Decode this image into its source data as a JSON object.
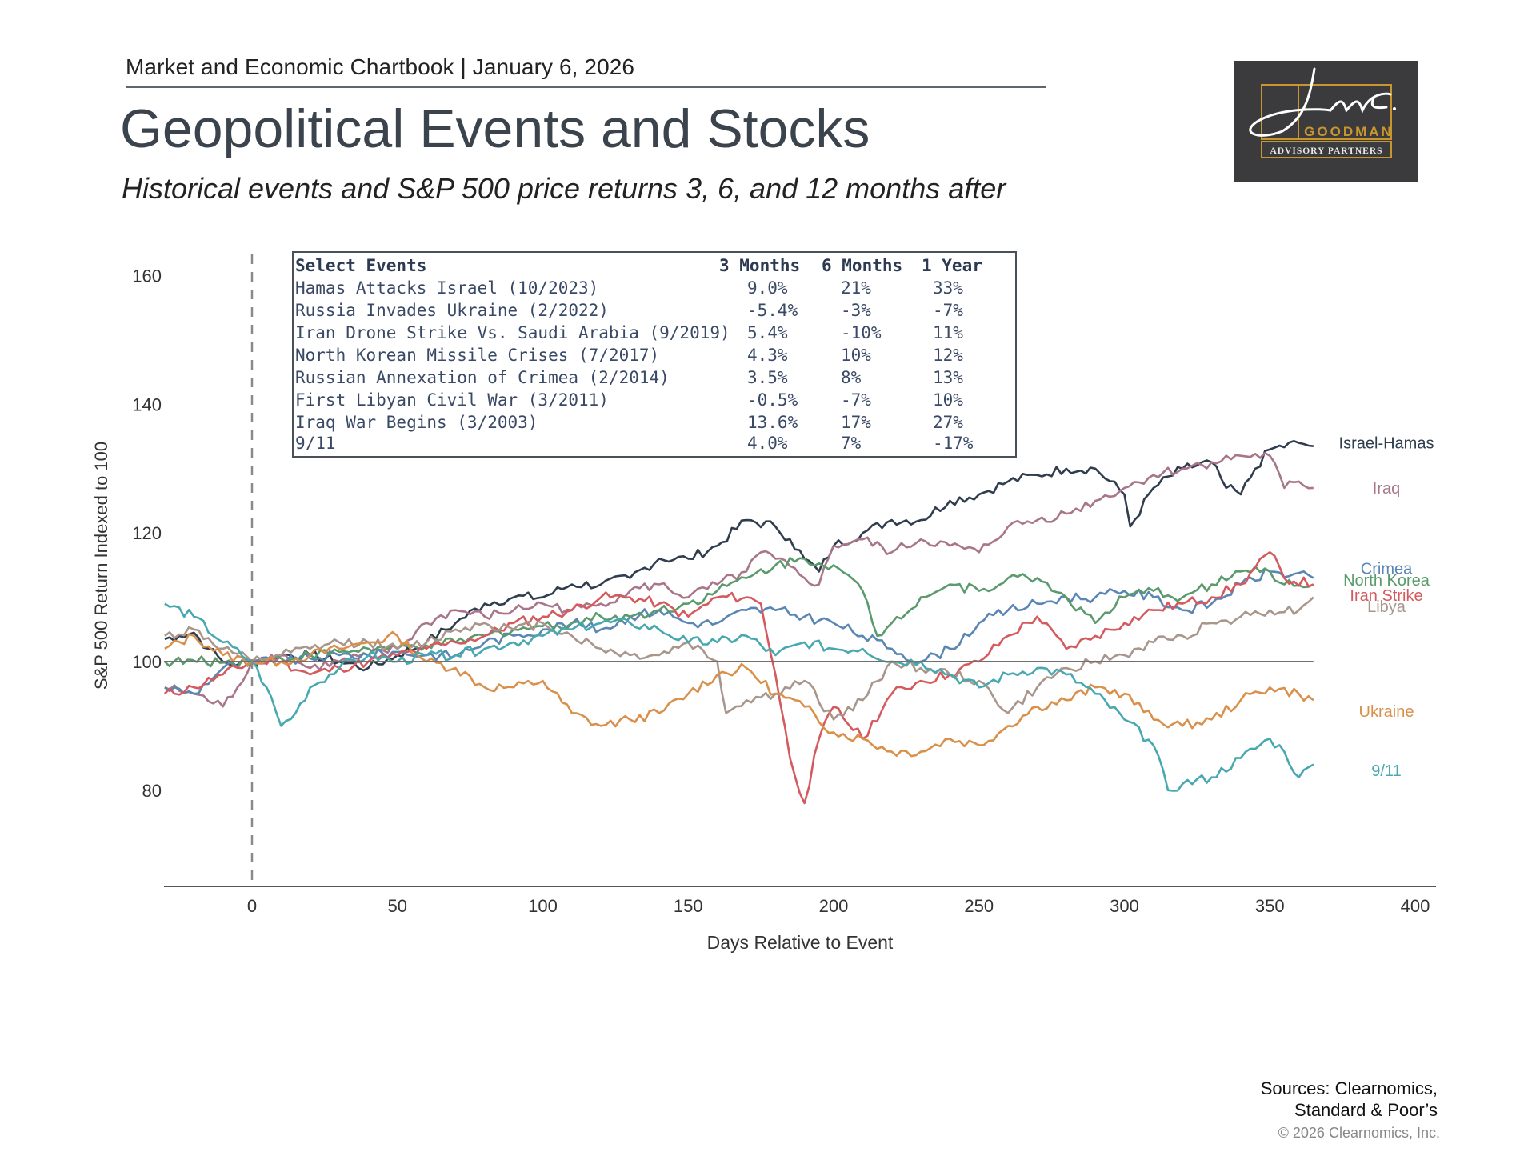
{
  "header": {
    "chartbook": "Market and Economic Chartbook | January 6, 2026",
    "title": "Geopolitical Events and Stocks",
    "subtitle": "Historical events and S&P 500 price returns 3, 6, and 12 months after"
  },
  "logo": {
    "script": "Jon C.",
    "name": "GOODMAN",
    "tagline": "ADVISORY PARTNERS",
    "bg_color": "#3b3b3d",
    "accent_color": "#c8962e"
  },
  "events_table": {
    "headers": [
      "Select Events",
      "3 Months",
      "6 Months",
      "1 Year"
    ],
    "rows": [
      [
        "Hamas Attacks Israel (10/2023)",
        "9.0%",
        "21%",
        "33%"
      ],
      [
        "Russia Invades Ukraine (2/2022)",
        "-5.4%",
        "-3%",
        "-7%"
      ],
      [
        "Iran Drone Strike Vs. Saudi Arabia (9/2019)",
        "5.4%",
        "-10%",
        "11%"
      ],
      [
        "North Korean Missile Crises (7/2017)",
        "4.3%",
        "10%",
        "12%"
      ],
      [
        "Russian Annexation of Crimea (2/2014)",
        "3.5%",
        "8%",
        "13%"
      ],
      [
        "First Libyan Civil War (3/2011)",
        "-0.5%",
        "-7%",
        "10%"
      ],
      [
        "Iraq War Begins (3/2003)",
        "13.6%",
        "17%",
        "27%"
      ],
      [
        "9/11",
        "4.0%",
        "7%",
        "-17%"
      ]
    ]
  },
  "chart_data": {
    "type": "line",
    "title": "Geopolitical Events and Stocks",
    "xlabel": "Days Relative to Event",
    "ylabel": "S&P 500 Return Indexed to 100",
    "xlim": [
      -30,
      400
    ],
    "ylim": [
      65,
      165
    ],
    "xticks": [
      0,
      50,
      100,
      150,
      200,
      250,
      300,
      350,
      400
    ],
    "yticks": [
      80,
      100,
      120,
      140,
      160
    ],
    "reference_line": 100,
    "event_marker_day": 0,
    "grid": false,
    "legend": "direct labels at right end of lines",
    "series": [
      {
        "name": "Israel-Hamas",
        "color": "#2f3d4e",
        "x": [
          -30,
          -25,
          -20,
          -15,
          -10,
          -5,
          0,
          10,
          20,
          30,
          40,
          50,
          60,
          70,
          80,
          90,
          100,
          110,
          120,
          130,
          140,
          150,
          160,
          170,
          180,
          185,
          190,
          195,
          200,
          210,
          220,
          230,
          240,
          250,
          260,
          270,
          280,
          290,
          300,
          302,
          310,
          320,
          330,
          335,
          340,
          345,
          350,
          360,
          365
        ],
        "y": [
          103.5,
          104,
          104.5,
          102,
          100,
          99.5,
          100,
          101,
          101,
          100,
          99,
          101,
          103,
          106,
          109,
          110,
          110,
          112,
          112,
          113,
          116,
          116,
          118,
          122,
          121,
          119,
          116,
          114,
          118,
          120,
          122,
          122,
          125,
          126,
          128,
          129,
          130,
          130,
          126,
          121,
          127,
          130,
          131,
          127,
          126,
          130,
          133,
          134,
          133.5
        ]
      },
      {
        "name": "Iraq",
        "color": "#a8758a",
        "x": [
          -30,
          -20,
          -10,
          -5,
          0,
          10,
          20,
          30,
          40,
          50,
          60,
          70,
          80,
          90,
          100,
          110,
          120,
          130,
          140,
          150,
          160,
          170,
          175,
          180,
          190,
          195,
          200,
          210,
          220,
          230,
          240,
          250,
          260,
          270,
          280,
          290,
          300,
          310,
          320,
          330,
          340,
          350,
          355,
          360,
          365
        ],
        "y": [
          96,
          95,
          93,
          96,
          100,
          101,
          99,
          100,
          101,
          102,
          106,
          108,
          107,
          108,
          109,
          108,
          109,
          111,
          112,
          110,
          112,
          114,
          117,
          116,
          113,
          112,
          118,
          119,
          117,
          119,
          118,
          117,
          121,
          122,
          123,
          125,
          127,
          129,
          130,
          131,
          132,
          132,
          127,
          128,
          127
        ]
      },
      {
        "name": "Crimea",
        "color": "#5a86b4",
        "x": [
          -30,
          -20,
          -10,
          0,
          10,
          20,
          30,
          40,
          50,
          60,
          70,
          80,
          90,
          100,
          110,
          120,
          130,
          140,
          150,
          160,
          170,
          180,
          190,
          200,
          210,
          220,
          230,
          240,
          250,
          260,
          270,
          280,
          290,
          300,
          310,
          320,
          330,
          340,
          350,
          365
        ],
        "y": [
          96,
          95,
          99,
          100,
          100,
          100.5,
          101,
          101,
          101.5,
          101,
          101,
          103,
          104,
          105,
          106,
          105,
          107,
          108,
          106,
          106,
          108,
          108,
          107,
          106,
          104,
          102,
          100,
          102,
          106,
          108,
          109,
          110,
          110,
          111,
          110,
          108,
          109,
          112,
          114,
          113
        ]
      },
      {
        "name": "North Korea",
        "color": "#5a9a6c",
        "x": [
          -30,
          0,
          10,
          20,
          30,
          40,
          50,
          60,
          70,
          80,
          90,
          100,
          110,
          120,
          130,
          140,
          150,
          160,
          170,
          180,
          190,
          200,
          210,
          215,
          220,
          230,
          240,
          250,
          260,
          270,
          280,
          290,
          300,
          310,
          320,
          330,
          340,
          350,
          355,
          365
        ],
        "y": [
          100,
          100,
          100.5,
          101,
          101.5,
          102,
          102,
          102.5,
          103,
          104,
          105,
          105.5,
          106,
          107,
          107,
          108,
          109,
          111,
          113,
          115,
          116,
          115,
          111,
          104,
          106,
          110,
          112,
          111,
          113,
          113,
          110,
          106,
          110,
          111,
          110,
          112,
          114,
          114,
          112,
          112
        ]
      },
      {
        "name": "Iran Strike",
        "color": "#d45a5e",
        "x": [
          -30,
          -20,
          -10,
          0,
          10,
          20,
          30,
          40,
          50,
          60,
          70,
          80,
          90,
          100,
          110,
          120,
          130,
          140,
          150,
          160,
          170,
          175,
          180,
          185,
          190,
          195,
          200,
          210,
          220,
          230,
          240,
          250,
          260,
          270,
          280,
          290,
          300,
          310,
          320,
          330,
          340,
          350,
          355,
          365
        ],
        "y": [
          95,
          96,
          98,
          100,
          100,
          98,
          99,
          100,
          101,
          102,
          103,
          104,
          106,
          107,
          108,
          110,
          110,
          109,
          107,
          110,
          110,
          109,
          98,
          85,
          78,
          88,
          93,
          88,
          95,
          97,
          98,
          100,
          104,
          107,
          102,
          104,
          106,
          108,
          109,
          110,
          112,
          117,
          113,
          112
        ]
      },
      {
        "name": "Libya",
        "color": "#a8968c",
        "x": [
          -30,
          -20,
          -10,
          0,
          10,
          20,
          30,
          40,
          50,
          60,
          70,
          80,
          90,
          100,
          110,
          120,
          130,
          140,
          150,
          160,
          163,
          170,
          180,
          190,
          200,
          210,
          220,
          230,
          240,
          250,
          260,
          270,
          280,
          290,
          300,
          310,
          320,
          330,
          340,
          350,
          360,
          365
        ],
        "y": [
          104,
          105,
          102,
          100,
          101,
          102,
          103,
          103,
          102,
          103,
          105,
          106,
          105,
          106,
          104,
          102,
          101,
          101,
          103,
          100,
          92,
          94,
          95,
          97,
          91,
          94,
          100,
          99,
          98,
          97,
          92,
          96,
          99,
          100,
          101,
          103,
          104,
          106,
          107,
          108,
          108,
          110
        ]
      },
      {
        "name": "Ukraine",
        "color": "#d9904a",
        "x": [
          -30,
          -20,
          -10,
          0,
          10,
          20,
          30,
          40,
          50,
          60,
          70,
          80,
          90,
          100,
          110,
          120,
          130,
          140,
          150,
          160,
          170,
          180,
          190,
          200,
          210,
          220,
          230,
          240,
          250,
          260,
          270,
          280,
          290,
          300,
          310,
          320,
          330,
          340,
          350,
          360,
          365
        ],
        "y": [
          102,
          104,
          101,
          100,
          100,
          101,
          102,
          103,
          104,
          100,
          99,
          96,
          96,
          97,
          92,
          90,
          91,
          92,
          95,
          98,
          99,
          95,
          93,
          89,
          88,
          86,
          86,
          88,
          87,
          90,
          93,
          94,
          96,
          95,
          91,
          90,
          91,
          94,
          96,
          95,
          94
        ]
      },
      {
        "name": "9/11",
        "color": "#48a8b0",
        "x": [
          -30,
          -20,
          -10,
          0,
          5,
          10,
          15,
          20,
          30,
          40,
          50,
          60,
          70,
          80,
          90,
          100,
          110,
          120,
          130,
          140,
          150,
          160,
          170,
          180,
          190,
          200,
          210,
          220,
          230,
          240,
          250,
          260,
          270,
          280,
          290,
          300,
          310,
          315,
          320,
          330,
          340,
          350,
          355,
          360,
          365
        ],
        "y": [
          109,
          107,
          103,
          100,
          96,
          90,
          92,
          96,
          99,
          101,
          100,
          101,
          101,
          102,
          103,
          104,
          105,
          106,
          106,
          105,
          103,
          103,
          104,
          101,
          103,
          102,
          102,
          100,
          100,
          98,
          96,
          98,
          99,
          98,
          95,
          91,
          87,
          80,
          81,
          82,
          85,
          88,
          86,
          82,
          84
        ]
      }
    ],
    "series_label_y": {
      "Israel-Hamas": 134,
      "Iraq": 127,
      "Crimea": 114.5,
      "North Korea": 112.7,
      "Iran Strike": 110.3,
      "Libya": 108.6,
      "Ukraine": 92.3,
      "9/11": 83.1
    }
  },
  "footer": {
    "sources_line1": "Sources: Clearnomics,",
    "sources_line2": "Standard & Poor’s",
    "copyright": "© 2026 Clearnomics, Inc."
  }
}
